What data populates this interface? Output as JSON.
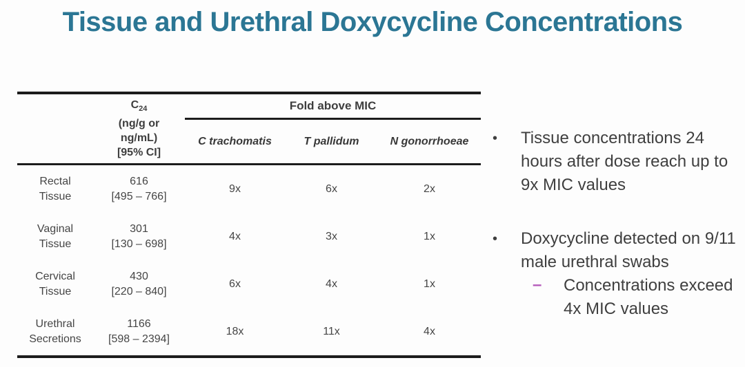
{
  "slide": {
    "title": "Tissue and Urethral Doxycycline Concentrations"
  },
  "table": {
    "c24_header": {
      "symbol": "C",
      "subscript": "24",
      "unit_line1": "(ng/g or",
      "unit_line2": "ng/mL)",
      "unit_line3": "[95% CI]"
    },
    "group_header": "Fold above MIC",
    "species": [
      {
        "label": "C trachomatis"
      },
      {
        "label": "T pallidum"
      },
      {
        "label": "N gonorrhoeae"
      }
    ],
    "rows": [
      {
        "label_line1": "Rectal",
        "label_line2": "Tissue",
        "c24": "616",
        "ci": "[495 – 766]",
        "ct": "9x",
        "tp": "6x",
        "ng": "2x"
      },
      {
        "label_line1": "Vaginal",
        "label_line2": "Tissue",
        "c24": "301",
        "ci": "[130 – 698]",
        "ct": "4x",
        "tp": "3x",
        "ng": "1x"
      },
      {
        "label_line1": "Cervical",
        "label_line2": "Tissue",
        "c24": "430",
        "ci": "[220 – 840]",
        "ct": "6x",
        "tp": "4x",
        "ng": "1x"
      },
      {
        "label_line1": "Urethral",
        "label_line2": "Secretions",
        "c24": "1166",
        "ci": "[598 – 2394]",
        "ct": "18x",
        "tp": "11x",
        "ng": "4x"
      }
    ]
  },
  "bullets": {
    "bullet1": "Tissue concentrations 24 hours after dose reach up to 9x MIC values",
    "bullet2": "Doxycycline detected on 9/11 male urethral swabs",
    "sub_bullet": "Concentrations exceed 4x MIC values"
  },
  "glyphs": {
    "bullet_dot": "•",
    "sub_dash": "–"
  },
  "colors": {
    "title": "#2b7694",
    "body_text": "#3f3f3f",
    "table_rule": "#1c1c1c",
    "sub_bullet_dash": "#b55cbb"
  }
}
